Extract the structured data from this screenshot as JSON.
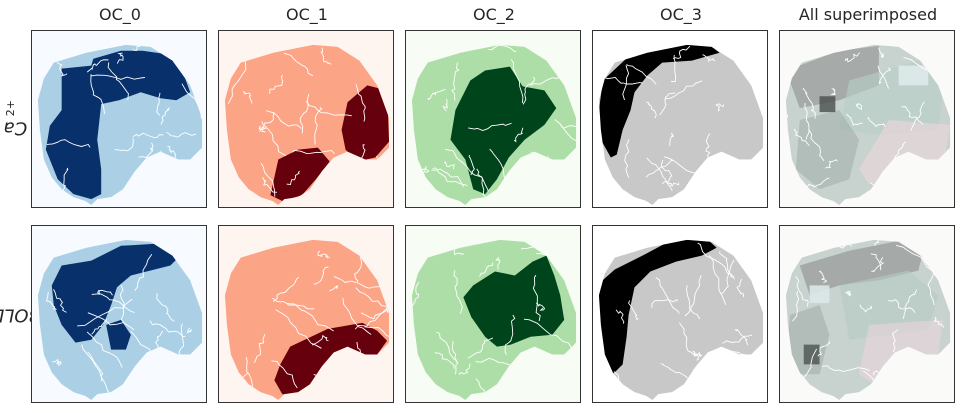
{
  "chart_data": {
    "type": "heatmap",
    "columns": [
      {
        "title": "OC_0",
        "bg": "#f7fbff",
        "light": "#abd0e6",
        "dark": "#08306b"
      },
      {
        "title": "OC_1",
        "bg": "#fff5f0",
        "light": "#fca486",
        "dark": "#67000d"
      },
      {
        "title": "OC_2",
        "bg": "#f7fcf5",
        "light": "#aedea7",
        "dark": "#00441b"
      },
      {
        "title": "OC_3",
        "bg": "#ffffff",
        "light": "#c8c8c8",
        "dark": "#000000"
      },
      {
        "title": "All superimposed",
        "bg": "#fafaf8",
        "light": "#c4d6cf",
        "dark": "#8a8a8a"
      }
    ],
    "rows": [
      {
        "label": "Ca",
        "label_sup": "2+"
      },
      {
        "label": "BOLD",
        "label_sup": ""
      }
    ],
    "grid": false,
    "legend": "none"
  }
}
